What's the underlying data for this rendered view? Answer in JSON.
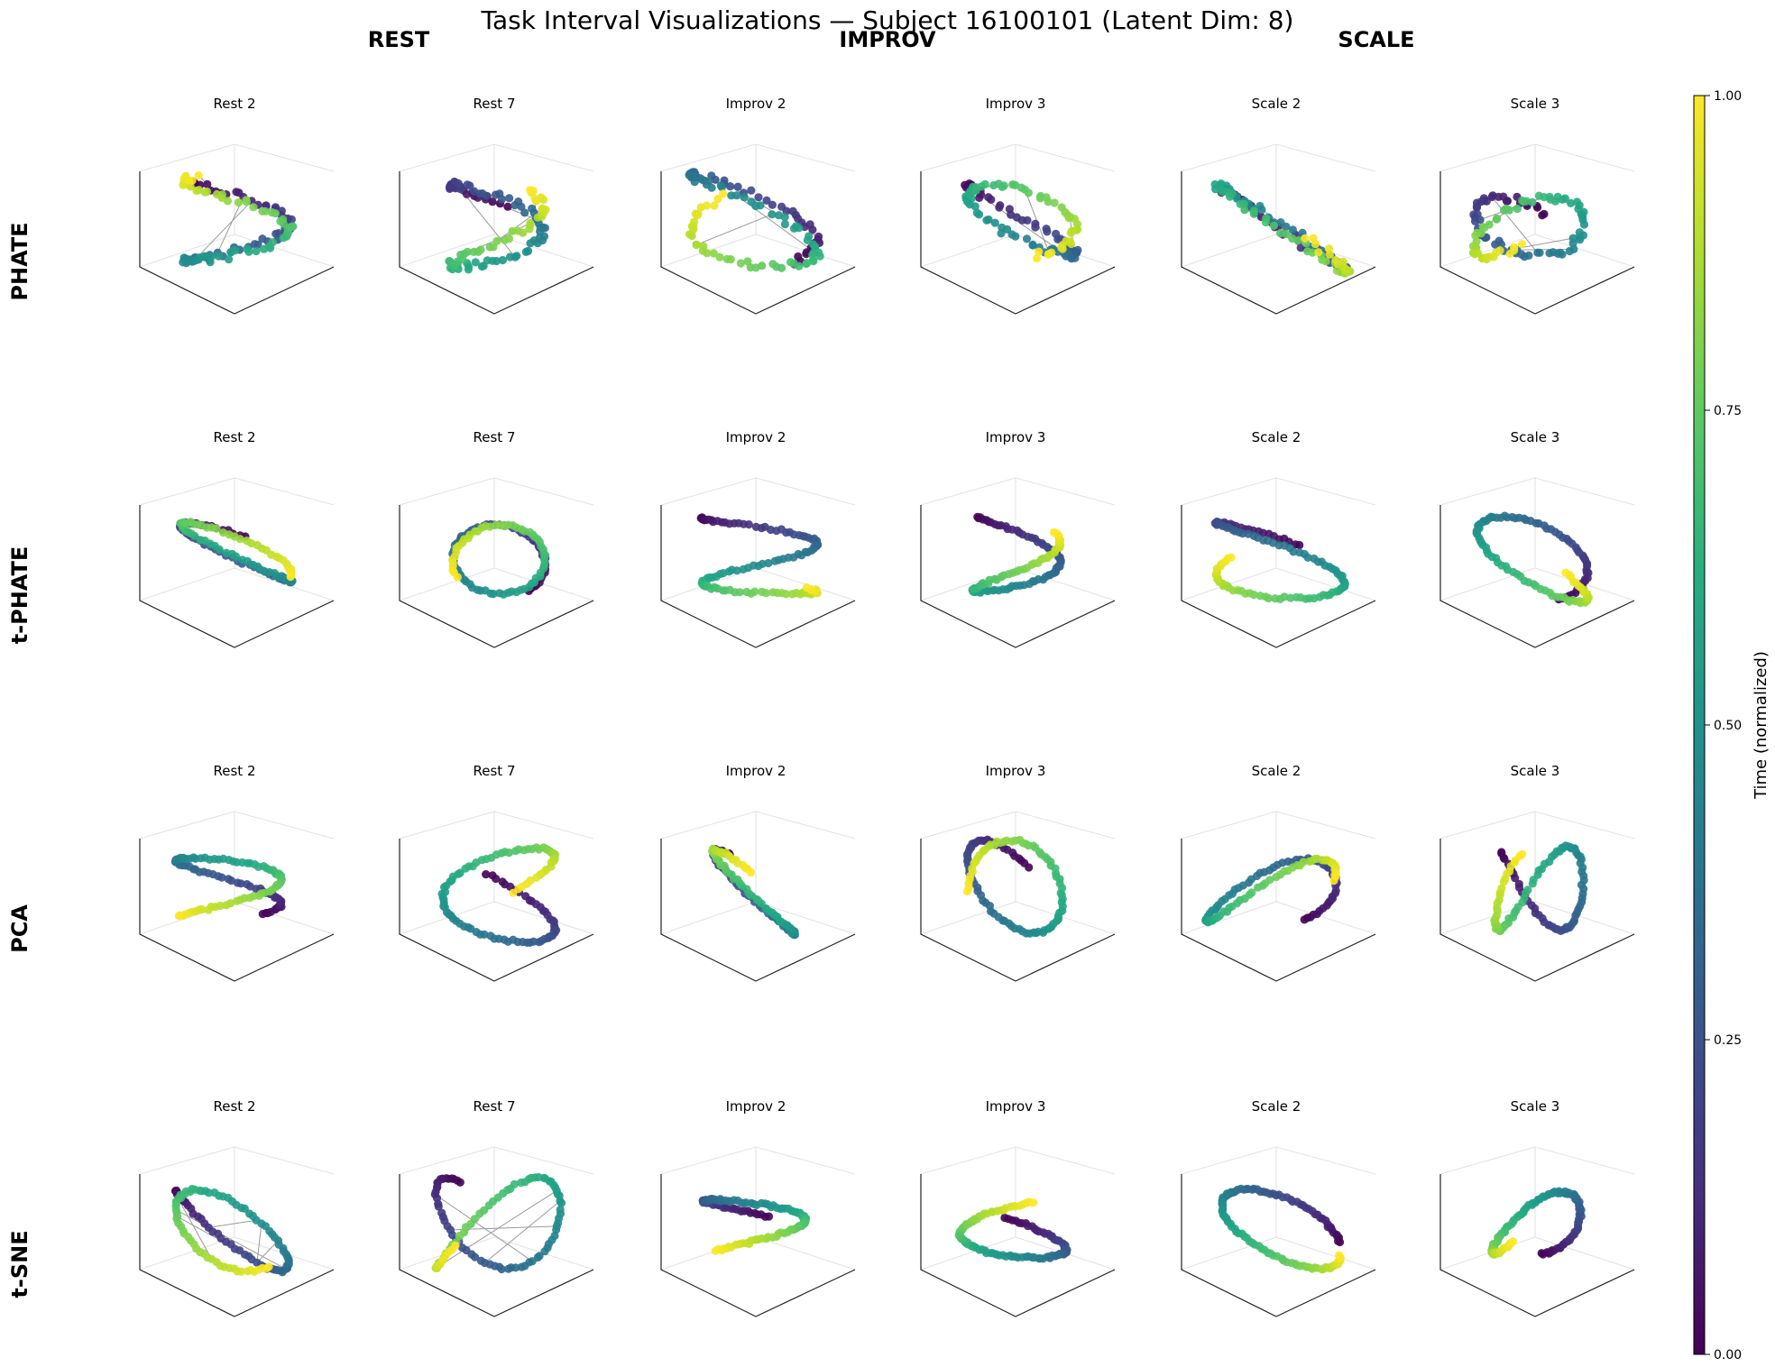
{
  "title": "Task Interval Visualizations — Subject 16100101 (Latent Dim: 8)",
  "column_groups": [
    "REST",
    "IMPROV",
    "SCALE"
  ],
  "rows": [
    "PHATE",
    "t-PHATE",
    "PCA",
    "t-SNE"
  ],
  "panel_titles": [
    "Rest 2",
    "Rest 7",
    "Improv 2",
    "Improv 3",
    "Scale 2",
    "Scale 3"
  ],
  "colorbar": {
    "label": "Time (normalized)",
    "ticks": [
      "0.00",
      "0.25",
      "0.50",
      "0.75",
      "1.00"
    ],
    "range": [
      0,
      1
    ],
    "colormap": "viridis"
  },
  "chart_data": {
    "type": "scatter",
    "projection": "3d",
    "grid": "6 columns x 4 rows of 3D trajectory scatter plots",
    "color_encodes": "normalized time (0 to 1)",
    "axes_visible": false,
    "note_connecting_lines": "thin grey lines join consecutive points across jumps"
  }
}
